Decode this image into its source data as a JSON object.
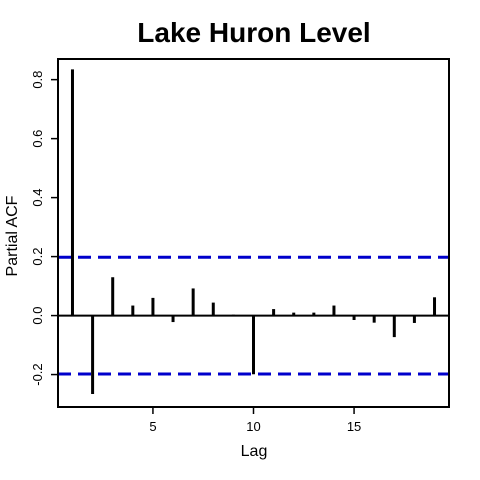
{
  "chart_data": {
    "type": "bar",
    "title": "Lake Huron Level",
    "xlabel": "Lag",
    "ylabel": "Partial ACF",
    "x": [
      1,
      2,
      3,
      4,
      5,
      6,
      7,
      8,
      9,
      10,
      11,
      12,
      13,
      14,
      15,
      16,
      17,
      18,
      19
    ],
    "values": [
      0.835,
      -0.266,
      0.13,
      0.034,
      0.06,
      -0.022,
      0.092,
      0.044,
      0.003,
      -0.199,
      0.022,
      0.01,
      0.01,
      0.034,
      -0.015,
      -0.024,
      -0.073,
      -0.025,
      0.062
    ],
    "xlim": [
      0.28,
      19.72
    ],
    "ylim": [
      -0.31,
      0.87
    ],
    "x_ticks": [
      5,
      10,
      15
    ],
    "x_tick_labels": [
      "5",
      "10",
      "15"
    ],
    "y_ticks": [
      -0.2,
      0.0,
      0.2,
      0.4,
      0.6,
      0.8
    ],
    "y_tick_labels": [
      "-0.2",
      "0.0",
      "0.2",
      "0.4",
      "0.6",
      "0.8"
    ],
    "ci": {
      "upper": 0.1979,
      "lower": -0.1979,
      "color": "#0000cc",
      "style": "dashed"
    },
    "zero_line": 0.0,
    "bar_color": "#000000",
    "grid": false,
    "legend": "none"
  }
}
